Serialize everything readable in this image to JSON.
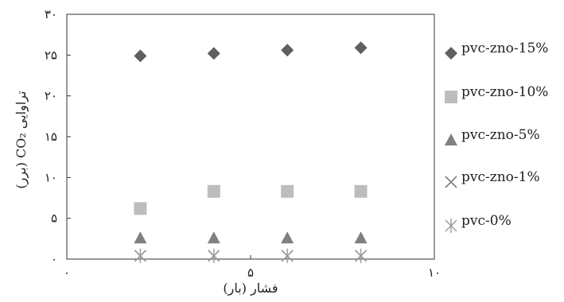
{
  "chart_data": {
    "type": "scatter",
    "xlabel": "فشار (بار)",
    "ylabel": "تراوایی CO₂ (برر)",
    "xlim": [
      0,
      10
    ],
    "ylim": [
      0,
      30
    ],
    "x_ticks": [
      0,
      5,
      10
    ],
    "x_tick_labels": [
      "۰",
      "۵",
      "۱۰"
    ],
    "y_ticks": [
      0,
      5,
      10,
      15,
      20,
      25,
      30
    ],
    "y_tick_labels": [
      "۰",
      "۵",
      "۱۰",
      "۱۵",
      "۲۰",
      "۲۵",
      "۳۰"
    ],
    "grid": false,
    "legend_position": "right",
    "series": [
      {
        "name": "pvc-zno-15%",
        "marker": "diamond",
        "color": "#5f5f5f",
        "x": [
          2,
          4,
          6,
          8
        ],
        "y": [
          24.9,
          25.2,
          25.6,
          25.9
        ]
      },
      {
        "name": "pvc-zno-10%",
        "marker": "square",
        "color": "#bdbdbd",
        "x": [
          2,
          4,
          6,
          8
        ],
        "y": [
          6.2,
          8.3,
          8.3,
          8.3
        ]
      },
      {
        "name": "pvc-zno-5%",
        "marker": "triangle",
        "color": "#808080",
        "x": [
          2,
          4,
          6,
          8
        ],
        "y": [
          2.6,
          2.6,
          2.6,
          2.6
        ]
      },
      {
        "name": "pvc-zno-1%",
        "marker": "x",
        "color": "#7f7f7f",
        "x": [
          2,
          4,
          6,
          8
        ],
        "y": [
          0.4,
          0.4,
          0.4,
          0.4
        ]
      },
      {
        "name": "pvc-0%",
        "marker": "asterisk",
        "color": "#9a9a9a",
        "x": [
          2,
          4,
          6,
          8
        ],
        "y": [
          0.4,
          0.4,
          0.4,
          0.4
        ]
      }
    ]
  }
}
